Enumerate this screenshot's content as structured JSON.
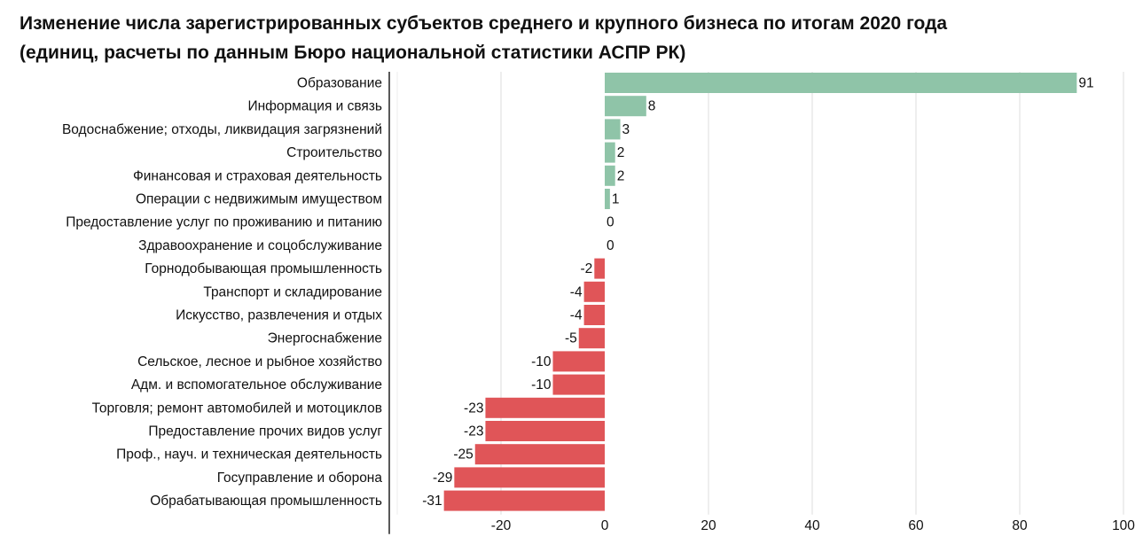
{
  "chart_data": {
    "type": "bar",
    "orientation": "horizontal",
    "title": "Изменение числа зарегистрированных субъектов среднего и крупного бизнеса по итогам 2020 года",
    "subtitle": "(единиц, расчеты по данным Бюро национальной статистики АСПР РК)",
    "categories": [
      "Образование",
      "Информация и связь",
      "Водоснабжение; отходы, ликвидация загрязнений",
      "Строительство",
      "Финансовая и страховая деятельность",
      "Операции с недвижимым имуществом",
      "Предоставление услуг по проживанию и питанию",
      "Здравоохранение и соцобслуживание",
      "Горнодобывающая промышленность",
      "Транспорт и складирование",
      "Искусство, развлечения и отдых",
      "Энергоснабжение",
      "Сельское, лесное и рыбное хозяйство",
      "Адм. и вспомогательное обслуживание",
      "Торговля; ремонт автомобилей и мотоциклов",
      "Предоставление прочих видов услуг",
      "Проф., науч. и техническая деятельность",
      "Госуправление и оборона",
      "Обрабатывающая промышленность"
    ],
    "values": [
      91,
      8,
      3,
      2,
      2,
      1,
      0,
      0,
      -2,
      -4,
      -4,
      -5,
      -10,
      -10,
      -23,
      -23,
      -25,
      -29,
      -31
    ],
    "xlim": [
      -40,
      100
    ],
    "xticks": [
      -20,
      0,
      20,
      40,
      60,
      80,
      100
    ],
    "grid": "vertical",
    "colors": {
      "positive": "#8fc4a8",
      "negative": "#e05558"
    }
  }
}
